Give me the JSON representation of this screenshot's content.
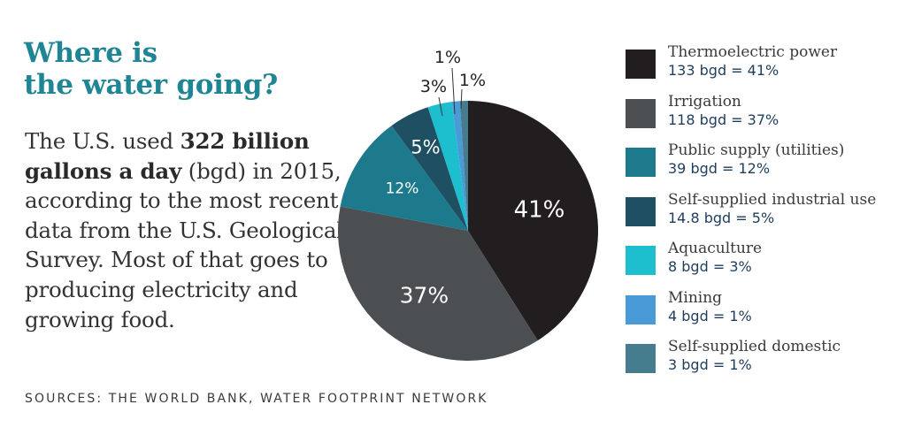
{
  "title": {
    "line1": "Where is",
    "line2": "the water going?"
  },
  "description": {
    "part1": "The U.S. used ",
    "bold": "322 billion gallons a day",
    "part2": " (bgd) in 2015, according to the most recent data from the U.S. Geological Survey. Most of that goes to producing electricity and growing food."
  },
  "sources": "SOURCES: THE WORLD BANK, WATER FOOTPRINT NETWORK",
  "colors": {
    "title": "#1f8595",
    "legend_value": "#1e3d5c"
  },
  "chart_data": {
    "type": "pie",
    "title": "Where is the water going?",
    "start": "top",
    "direction": "clockwise",
    "unit": "bgd",
    "slices": [
      {
        "name": "Thermoelectric power",
        "value": 133,
        "percent": 41,
        "label": "41%",
        "legend_value": "133 bgd = 41%",
        "color": "#221e1f",
        "label_style": "inside"
      },
      {
        "name": "Irrigation",
        "value": 118,
        "percent": 37,
        "label": "37%",
        "legend_value": "118 bgd = 37%",
        "color": "#4b4f52",
        "label_style": "inside"
      },
      {
        "name": "Public supply (utilities)",
        "value": 39,
        "percent": 12,
        "label": "12%",
        "legend_value": "39 bgd = 12%",
        "color": "#1c7a8c",
        "label_style": "inside"
      },
      {
        "name": "Self-supplied industrial use",
        "value": 14.8,
        "percent": 5,
        "label": "5%",
        "legend_value": "14.8 bgd = 5%",
        "color": "#1e4f63",
        "label_style": "inside"
      },
      {
        "name": "Aquaculture",
        "value": 8,
        "percent": 3,
        "label": "3%",
        "legend_value": "8 bgd = 3%",
        "color": "#1dbfcf",
        "label_style": "callout"
      },
      {
        "name": "Mining",
        "value": 4,
        "percent": 1,
        "label": "1%",
        "legend_value": "4 bgd = 1%",
        "color": "#4a9ad8",
        "label_style": "callout"
      },
      {
        "name": "Self-supplied domestic",
        "value": 3,
        "percent": 1,
        "label": "1%",
        "legend_value": "3 bgd = 1%",
        "color": "#457c8e",
        "label_style": "callout"
      }
    ],
    "legend_position": "right"
  }
}
